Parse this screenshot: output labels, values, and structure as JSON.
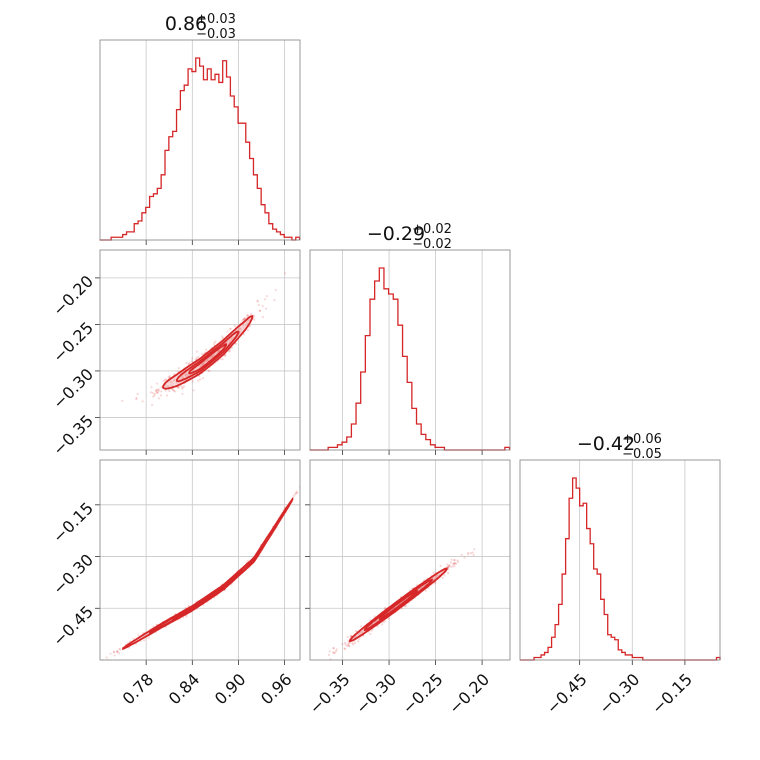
{
  "colors": {
    "accent": "#d62728",
    "fill": "#f2b8b8",
    "grid": "#c8c8c8",
    "frame": "#808080"
  },
  "chart_data": [
    {
      "type": "histogram",
      "panel": "p00",
      "title": {
        "main": "0.86",
        "sup": "+0.03",
        "sub": "−0.03"
      },
      "xlim": [
        0.72,
        0.98
      ],
      "x": [
        0.722,
        0.727,
        0.732,
        0.737,
        0.742,
        0.747,
        0.752,
        0.757,
        0.762,
        0.767,
        0.772,
        0.777,
        0.782,
        0.787,
        0.792,
        0.797,
        0.802,
        0.807,
        0.812,
        0.817,
        0.822,
        0.827,
        0.832,
        0.837,
        0.842,
        0.847,
        0.852,
        0.857,
        0.862,
        0.867,
        0.872,
        0.877,
        0.882,
        0.887,
        0.892,
        0.897,
        0.902,
        0.907,
        0.912,
        0.917,
        0.922,
        0.927,
        0.932,
        0.937,
        0.942,
        0.947,
        0.952,
        0.957,
        0.962,
        0.967,
        0.972,
        0.977
      ],
      "values": [
        0,
        0,
        0,
        1,
        1,
        1,
        2,
        3,
        3,
        6,
        7,
        10,
        12,
        16,
        17,
        19,
        24,
        33,
        38,
        40,
        48,
        55,
        57,
        63,
        62,
        67,
        64,
        59,
        63,
        59,
        61,
        58,
        66,
        60,
        53,
        49,
        43,
        43,
        36,
        30,
        24,
        19,
        13,
        10,
        6,
        4,
        3,
        2,
        1,
        1,
        0,
        1
      ]
    },
    {
      "type": "histogram",
      "panel": "p11",
      "title": {
        "main": "−0.29",
        "sup": "+0.02",
        "sub": "−0.02"
      },
      "xlim": [
        -0.385,
        -0.17
      ],
      "x": [
        -0.383,
        -0.378,
        -0.373,
        -0.368,
        -0.363,
        -0.358,
        -0.353,
        -0.348,
        -0.343,
        -0.338,
        -0.333,
        -0.328,
        -0.323,
        -0.318,
        -0.313,
        -0.308,
        -0.303,
        -0.298,
        -0.293,
        -0.288,
        -0.283,
        -0.278,
        -0.273,
        -0.268,
        -0.263,
        -0.258,
        -0.253,
        -0.248,
        -0.243,
        -0.238,
        -0.233,
        -0.228,
        -0.223,
        -0.218,
        -0.213,
        -0.208,
        -0.203,
        -0.198,
        -0.193,
        -0.188,
        -0.183,
        -0.178,
        -0.173
      ],
      "values": [
        0,
        0,
        0,
        0,
        1,
        1,
        2,
        3,
        5,
        10,
        18,
        30,
        44,
        58,
        65,
        70,
        62,
        60,
        58,
        48,
        36,
        26,
        16,
        10,
        6,
        4,
        2,
        1,
        1,
        0,
        0,
        0,
        0,
        0,
        0,
        0,
        0,
        0,
        0,
        0,
        0,
        0,
        1
      ]
    },
    {
      "type": "histogram",
      "panel": "p22",
      "title": {
        "main": "−0.42",
        "sup": "+0.06",
        "sub": "−0.05"
      },
      "xlim": [
        -0.62,
        -0.05
      ],
      "x": [
        -0.615,
        -0.605,
        -0.595,
        -0.585,
        -0.575,
        -0.565,
        -0.555,
        -0.545,
        -0.535,
        -0.525,
        -0.515,
        -0.505,
        -0.495,
        -0.485,
        -0.475,
        -0.465,
        -0.455,
        -0.445,
        -0.435,
        -0.425,
        -0.415,
        -0.405,
        -0.395,
        -0.385,
        -0.375,
        -0.365,
        -0.355,
        -0.345,
        -0.335,
        -0.325,
        -0.315,
        -0.305,
        -0.295,
        -0.285,
        -0.275,
        -0.265,
        -0.255,
        -0.245,
        -0.235,
        -0.225,
        -0.215,
        -0.205,
        -0.195,
        -0.185,
        -0.175,
        -0.165,
        -0.155,
        -0.145,
        -0.135,
        -0.125,
        -0.115,
        -0.105,
        -0.095,
        -0.085,
        -0.075,
        -0.065,
        -0.055
      ],
      "values": [
        0,
        0,
        0,
        0,
        1,
        1,
        2,
        3,
        5,
        9,
        14,
        22,
        34,
        48,
        64,
        72,
        68,
        61,
        62,
        52,
        46,
        36,
        34,
        24,
        18,
        10,
        9,
        8,
        4,
        3,
        2,
        2,
        1,
        1,
        1,
        0,
        0,
        0,
        0,
        0,
        0,
        0,
        0,
        0,
        0,
        0,
        0,
        0,
        0,
        0,
        0,
        0,
        0,
        0,
        0,
        0,
        1
      ]
    },
    {
      "type": "scatter",
      "panel": "p10",
      "xlim": [
        0.72,
        0.98
      ],
      "ylim": [
        -0.385,
        -0.17
      ],
      "xticks": [
        0.78,
        0.84,
        0.9,
        0.96
      ],
      "yticks": [
        -0.2,
        -0.25,
        -0.3,
        -0.35
      ],
      "yticklabels": [
        "−0.20",
        "−0.25",
        "−0.30",
        "−0.35"
      ],
      "ridge": {
        "x": [
          0.79,
          0.82,
          0.85,
          0.88,
          0.91,
          0.95
        ],
        "y": [
          -0.322,
          -0.31,
          -0.295,
          -0.275,
          -0.25,
          -0.21
        ]
      },
      "contours": [
        {
          "level": 0.39,
          "center": [
            0.86,
            -0.298
          ],
          "half_length": 0.058,
          "half_width": 0.006
        },
        {
          "level": 0.86,
          "center": [
            0.86,
            -0.298
          ],
          "half_length": 0.04,
          "half_width": 0.004
        },
        {
          "level": 0.99,
          "center": [
            0.86,
            -0.298
          ],
          "half_length": 0.024,
          "half_width": 0.0024
        }
      ]
    },
    {
      "type": "scatter",
      "panel": "p20",
      "xlim": [
        0.72,
        0.98
      ],
      "ylim": [
        -0.6,
        -0.02
      ],
      "xticks": [
        0.78,
        0.84,
        0.9,
        0.96
      ],
      "xticklabels": [
        "0.78",
        "0.84",
        "0.90",
        "0.96"
      ],
      "yticks": [
        -0.15,
        -0.3,
        -0.45
      ],
      "yticklabels": [
        "−0.15",
        "−0.30",
        "−0.45"
      ],
      "ridge": {
        "x": [
          0.77,
          0.8,
          0.84,
          0.88,
          0.92,
          0.96
        ],
        "y": [
          -0.54,
          -0.5,
          -0.45,
          -0.39,
          -0.31,
          -0.17
        ]
      },
      "contours": [
        {
          "level": 0.39,
          "center": [
            0.86,
            -0.41
          ],
          "half_length": 0.11,
          "half_width": 0.005
        },
        {
          "level": 0.86,
          "center": [
            0.86,
            -0.41
          ],
          "half_length": 0.075,
          "half_width": 0.0035
        },
        {
          "level": 0.99,
          "center": [
            0.86,
            -0.41
          ],
          "half_length": 0.045,
          "half_width": 0.002
        }
      ]
    },
    {
      "type": "scatter",
      "panel": "p21",
      "xlim": [
        -0.385,
        -0.17
      ],
      "ylim": [
        -0.6,
        -0.02
      ],
      "xticks": [
        -0.35,
        -0.3,
        -0.25,
        -0.2
      ],
      "xticklabels": [
        "−0.35",
        "−0.30",
        "−0.25",
        "−0.20"
      ],
      "yticks": [
        -0.15,
        -0.3,
        -0.45
      ],
      "ridge": {
        "x": [
          -0.33,
          -0.31,
          -0.29,
          -0.27,
          -0.25,
          -0.23
        ],
        "y": [
          -0.52,
          -0.48,
          -0.44,
          -0.4,
          -0.36,
          -0.32
        ]
      },
      "contours": [
        {
          "level": 0.39,
          "center": [
            -0.29,
            -0.435
          ],
          "half_length": 0.052,
          "half_width": 0.009
        },
        {
          "level": 0.86,
          "center": [
            -0.29,
            -0.435
          ],
          "half_length": 0.036,
          "half_width": 0.006
        },
        {
          "level": 0.99,
          "center": [
            -0.29,
            -0.435
          ],
          "half_length": 0.02,
          "half_width": 0.0035
        }
      ]
    }
  ],
  "bottom_row_xticks": {
    "p22": {
      "ticks": [
        -0.45,
        -0.3,
        -0.15
      ],
      "labels": [
        "−0.45",
        "−0.30",
        "−0.15"
      ]
    }
  }
}
